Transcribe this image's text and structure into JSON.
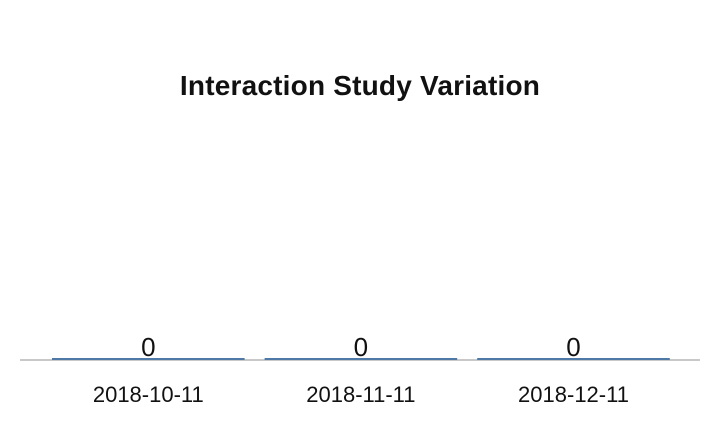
{
  "chart_data": {
    "type": "bar",
    "title": "Interaction Study Variation",
    "categories": [
      "2018-10-11",
      "2018-11-11",
      "2018-12-11"
    ],
    "values": [
      0,
      0,
      0
    ],
    "data_labels": [
      "0",
      "0",
      "0"
    ],
    "xlabel": "",
    "ylabel": "",
    "grid": false,
    "legend": "none",
    "colors": {
      "bar": "#4e79a7",
      "axis": "#c8c8c8",
      "text": "#111111"
    }
  }
}
